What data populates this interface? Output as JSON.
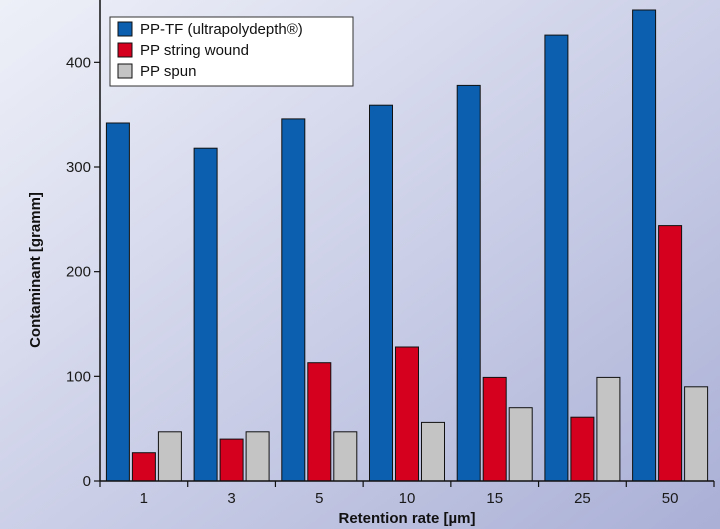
{
  "chart_data": {
    "type": "bar",
    "xlabel": "Retention rate [µm]",
    "ylabel": "Contaminant [gramm]",
    "categories": [
      "1",
      "3",
      "5",
      "10",
      "15",
      "25",
      "50"
    ],
    "ylim": [
      0,
      450
    ],
    "yticks": [
      0,
      100,
      200,
      300,
      400
    ],
    "grid": false,
    "legend_position": "top-left",
    "series": [
      {
        "name": "PP-TF (ultrapolydepth®)",
        "color": "#0b5fae",
        "values": [
          342,
          318,
          346,
          359,
          378,
          426,
          451
        ]
      },
      {
        "name": "PP string wound",
        "color": "#d4001e",
        "values": [
          27,
          40,
          113,
          128,
          99,
          61,
          244
        ]
      },
      {
        "name": "PP spun",
        "color": "#c4c4c4",
        "values": [
          47,
          47,
          47,
          56,
          70,
          99,
          90
        ]
      }
    ]
  }
}
